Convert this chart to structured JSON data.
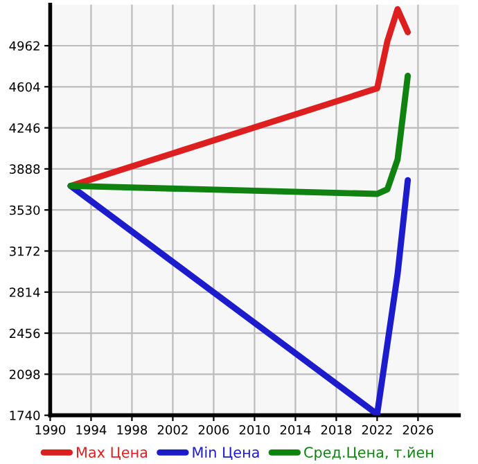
{
  "chart_data": {
    "type": "line",
    "x": [
      1992,
      2022,
      2023,
      2024,
      2025
    ],
    "series": [
      {
        "name": "Max Цена",
        "color": "#dd1f1f",
        "values": [
          3740,
          4590,
          5000,
          5280,
          5080
        ]
      },
      {
        "name": "Min Цена",
        "color": "#1c1ccc",
        "values": [
          3740,
          1750,
          null,
          2970,
          3790
        ],
        "x": [
          1992,
          2022,
          2023,
          2024,
          2025
        ]
      },
      {
        "name": "Сред.Цена, т.йен",
        "color": "#0f820f",
        "values": [
          3740,
          3670,
          3710,
          3970,
          4700
        ]
      }
    ],
    "xlim": [
      1990,
      2030
    ],
    "xticks": [
      1990,
      1994,
      1998,
      2002,
      2006,
      2010,
      2014,
      2018,
      2022,
      2026
    ],
    "ylim": [
      1740,
      5320
    ],
    "yticks": [
      1740,
      2098,
      2456,
      2814,
      3172,
      3530,
      3888,
      4246,
      4604,
      4962
    ],
    "grid": true,
    "legend": "bottom",
    "marker": "none",
    "line_style": "solid"
  }
}
